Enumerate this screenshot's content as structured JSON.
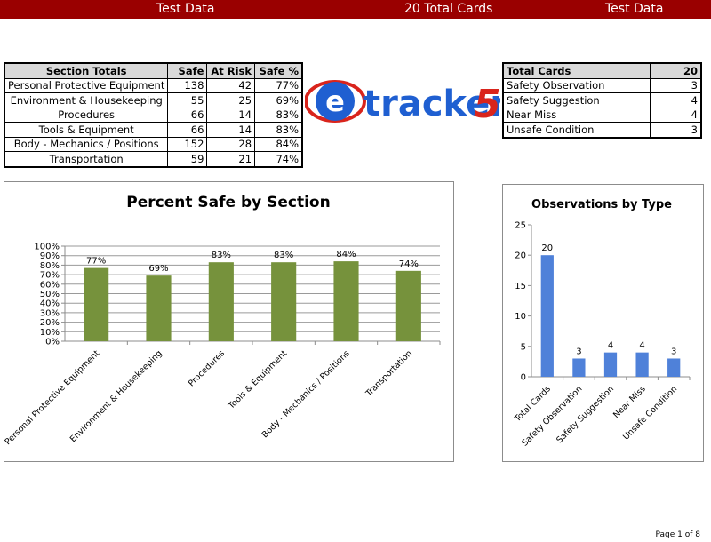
{
  "header": {
    "left": "Test Data",
    "center": "20 Total Cards",
    "right": "Test Data"
  },
  "section_table": {
    "headers": [
      "Section Totals",
      "Safe",
      "At Risk",
      "Safe %"
    ],
    "rows": [
      [
        "Personal Protective Equipment",
        "138",
        "42",
        "77%"
      ],
      [
        "Environment & Housekeeping",
        "55",
        "25",
        "69%"
      ],
      [
        "Procedures",
        "66",
        "14",
        "83%"
      ],
      [
        "Tools & Equipment",
        "66",
        "14",
        "83%"
      ],
      [
        "Body - Mechanics / Positions",
        "152",
        "28",
        "84%"
      ],
      [
        "Transportation",
        "59",
        "21",
        "74%"
      ]
    ]
  },
  "logo": {
    "letter": "e",
    "word": "tracker",
    "number": "5",
    "colors": {
      "e": "#1f5fd1",
      "ring": "#d9241c",
      "word": "#1f5fd1",
      "number": "#d9241c"
    }
  },
  "type_table": {
    "header": [
      "Total Cards",
      "20"
    ],
    "rows": [
      [
        "Safety Observation",
        "3"
      ],
      [
        "Safety Suggestion",
        "4"
      ],
      [
        "Near Miss",
        "4"
      ],
      [
        "Unsafe Condition",
        "3"
      ]
    ]
  },
  "chart_data": [
    {
      "type": "bar",
      "title": "Percent Safe by Section",
      "categories": [
        "Personal Protective Equipment",
        "Environment & Housekeeping",
        "Procedures",
        "Tools & Equipment",
        "Body - Mechanics / Positions",
        "Transportation"
      ],
      "values": [
        77,
        69,
        83,
        83,
        84,
        74
      ],
      "data_labels": [
        "77%",
        "69%",
        "83%",
        "83%",
        "84%",
        "74%"
      ],
      "ylim": [
        0,
        100
      ],
      "yticks": [
        0,
        10,
        20,
        30,
        40,
        50,
        60,
        70,
        80,
        90,
        100
      ],
      "ytick_labels": [
        "0%",
        "10%",
        "20%",
        "30%",
        "40%",
        "50%",
        "60%",
        "70%",
        "80%",
        "90%",
        "100%"
      ],
      "grid": true,
      "legend": "none",
      "color": "#76923c"
    },
    {
      "type": "bar",
      "title": "Observations by Type",
      "categories": [
        "Total Cards",
        "Safety Observation",
        "Safety Suggestion",
        "Near Miss",
        "Unsafe Condition"
      ],
      "values": [
        20,
        3,
        4,
        4,
        3
      ],
      "data_labels": [
        "20",
        "3",
        "4",
        "4",
        "3"
      ],
      "ylim": [
        0,
        25
      ],
      "yticks": [
        0,
        5,
        10,
        15,
        20,
        25
      ],
      "ytick_labels": [
        "0",
        "5",
        "10",
        "15",
        "20",
        "25"
      ],
      "grid": false,
      "legend": "none",
      "color": "#4f81d9"
    }
  ],
  "footer": "Page 1 of 8"
}
